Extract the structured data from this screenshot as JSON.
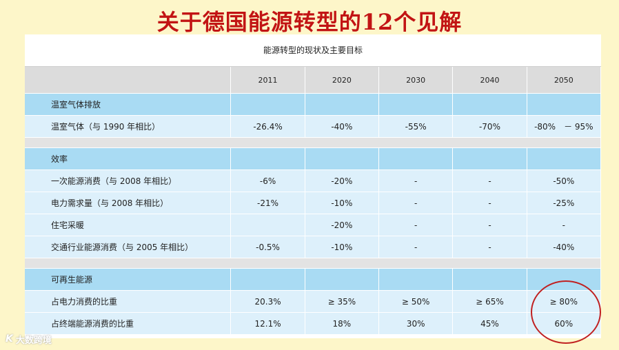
{
  "title": "关于德国能源转型的12个见解",
  "table": {
    "caption": "能源转型的现状及主要目标",
    "years": [
      "2011",
      "2020",
      "2030",
      "2040",
      "2050"
    ],
    "groups": [
      {
        "section": "温室气体排放",
        "rows": [
          {
            "label": "温室气体（与 1990 年相比）",
            "values": [
              "-26.4%",
              "-40%",
              "-55%",
              "-70%",
              "-80%　－ 95%"
            ]
          }
        ]
      },
      {
        "section": "效率",
        "rows": [
          {
            "label": "一次能源消费（与 2008 年相比）",
            "values": [
              "-6%",
              "-20%",
              "-",
              "-",
              "-50%"
            ]
          },
          {
            "label": "电力需求量（与 2008 年相比）",
            "values": [
              "-21%",
              "-10%",
              "-",
              "-",
              "-25%"
            ]
          },
          {
            "label": "住宅采暖",
            "values": [
              "",
              "-20%",
              "-",
              "-",
              "-"
            ]
          },
          {
            "label": "交通行业能源消费（与 2005 年相比）",
            "values": [
              "-0.5%",
              "-10%",
              "-",
              "-",
              "-40%"
            ]
          }
        ]
      },
      {
        "section": "可再生能源",
        "rows": [
          {
            "label": "占电力消费的比重",
            "values": [
              "20.3%",
              "≥ 35%",
              "≥ 50%",
              "≥ 65%",
              "≥ 80%"
            ]
          },
          {
            "label": "占终端能源消费的比重",
            "values": [
              "12.1%",
              "18%",
              "30%",
              "45%",
              "60%"
            ]
          }
        ]
      }
    ]
  },
  "watermark": {
    "logo": "K",
    "text": "大数跨境"
  },
  "colors": {
    "title": "#c21414",
    "section": "#a9dbf3",
    "row": "#ddf0fb",
    "header": "#dcdcdc",
    "highlight_circle": "#c02020"
  }
}
